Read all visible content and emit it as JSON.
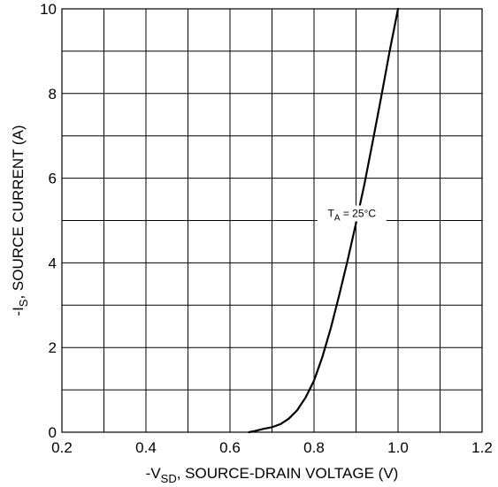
{
  "chart_data": {
    "type": "line",
    "title": "",
    "xlabel": {
      "prefix": "-V",
      "sub": "SD",
      "suffix": ", SOURCE-DRAIN VOLTAGE (V)"
    },
    "ylabel": {
      "prefix": "-I",
      "sub": "S",
      "suffix": ", SOURCE CURRENT (A)"
    },
    "xlim": [
      0.2,
      1.2
    ],
    "ylim": [
      0,
      10
    ],
    "xticks": [
      "0.2",
      "0.4",
      "0.6",
      "0.8",
      "1.0",
      "1.2"
    ],
    "yticks": [
      "0",
      "2",
      "4",
      "6",
      "8",
      "10"
    ],
    "x_grid_step": 0.1,
    "y_grid_step": 1,
    "grid": true,
    "legend": "none",
    "annotation": {
      "prefix": "T",
      "sub": "A",
      "suffix": " = 25°C",
      "x": 0.89,
      "y": 5.0
    },
    "series": [
      {
        "x": [
          0.645,
          0.66,
          0.68,
          0.7,
          0.72,
          0.74,
          0.76,
          0.78,
          0.8,
          0.82,
          0.84,
          0.86,
          0.88,
          0.9,
          0.92,
          0.94,
          0.96,
          0.98,
          1.0
        ],
        "y": [
          0.0,
          0.03,
          0.08,
          0.12,
          0.19,
          0.32,
          0.52,
          0.82,
          1.22,
          1.78,
          2.46,
          3.24,
          4.06,
          4.94,
          5.86,
          6.88,
          7.92,
          9.0,
          10.0
        ]
      }
    ]
  }
}
